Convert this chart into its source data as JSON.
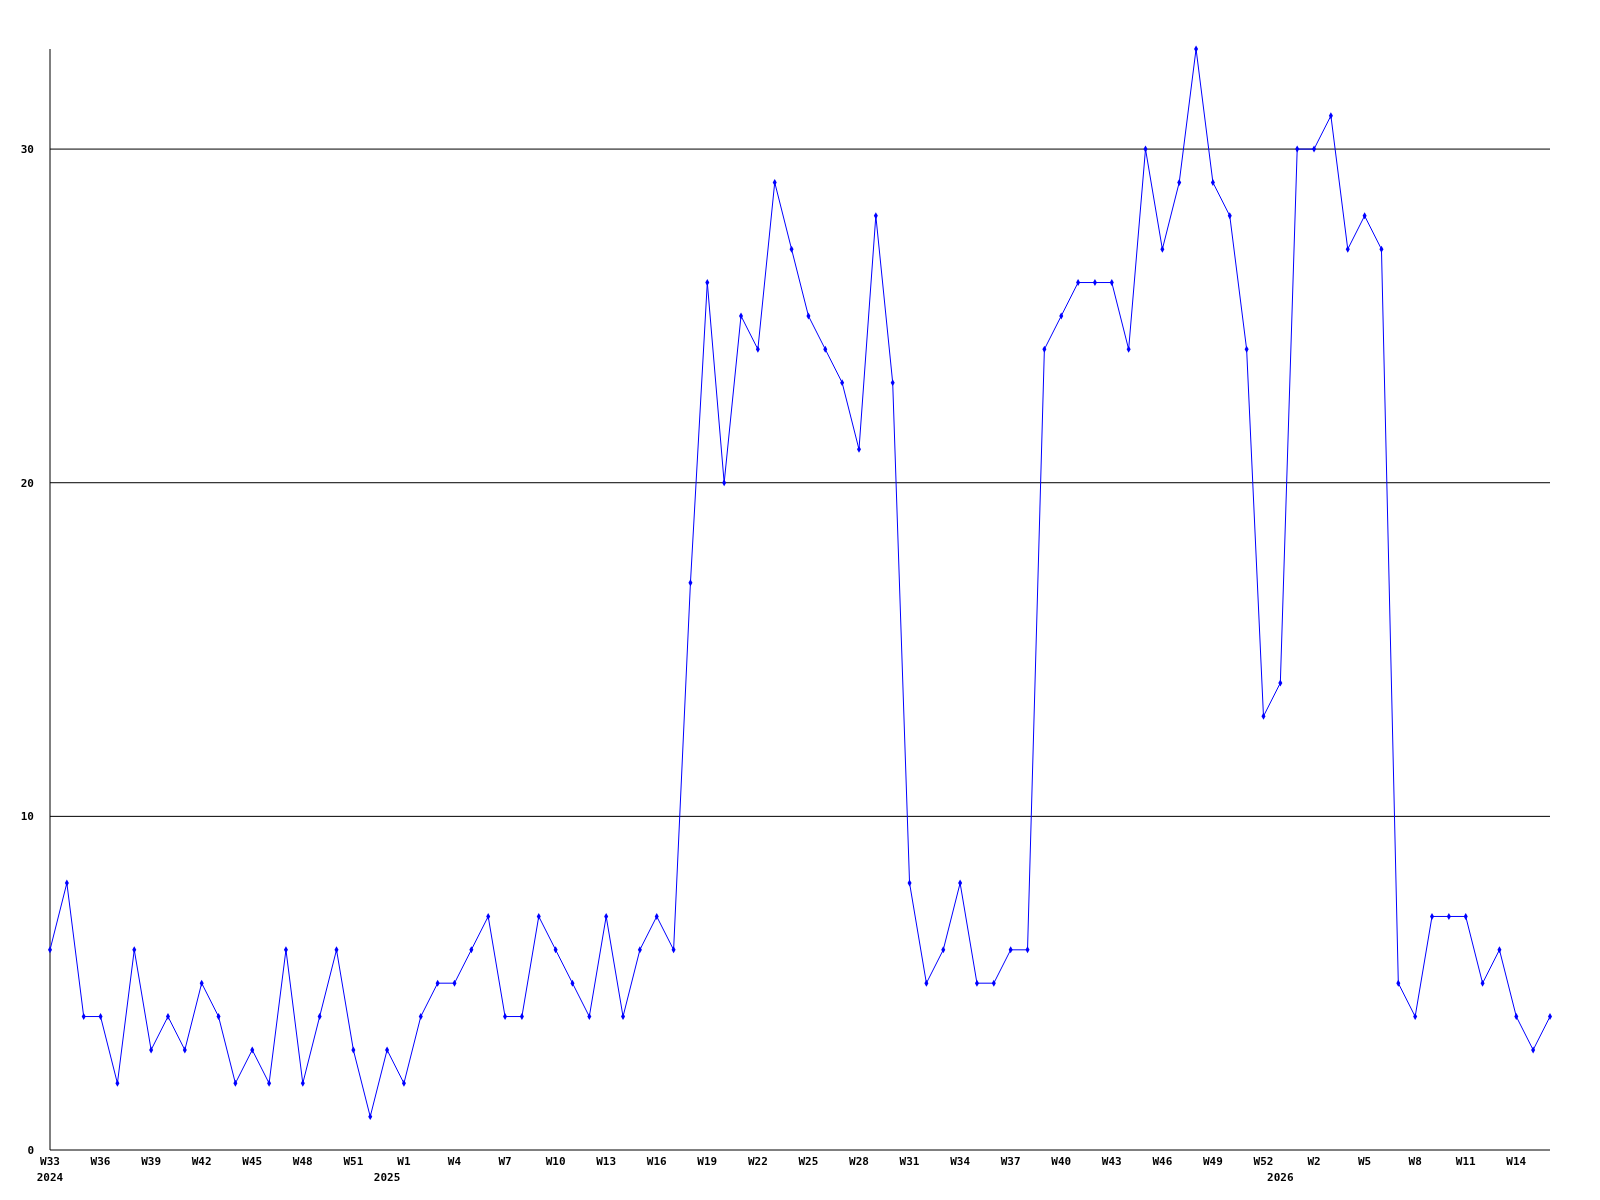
{
  "chart_data": {
    "type": "line",
    "categories": [
      "W33\n2024",
      null,
      null,
      "W36",
      null,
      null,
      "W39",
      null,
      null,
      "W42",
      null,
      null,
      "W45",
      null,
      null,
      "W48",
      null,
      null,
      "W51",
      null,
      "\n2025",
      "W1",
      null,
      null,
      "W4",
      null,
      null,
      "W7",
      null,
      null,
      "W10",
      null,
      null,
      "W13",
      null,
      null,
      "W16",
      null,
      null,
      "W19",
      null,
      null,
      "W22",
      null,
      null,
      "W25",
      null,
      null,
      "W28",
      null,
      null,
      "W31",
      null,
      null,
      "W34",
      null,
      null,
      "W37",
      null,
      null,
      "W40",
      null,
      null,
      "W43",
      null,
      null,
      "W46",
      null,
      null,
      "W49",
      null,
      null,
      "W52",
      "\n2026",
      null,
      "W2",
      null,
      null,
      "W5",
      null,
      null,
      "W8",
      null,
      null,
      "W11",
      null,
      null,
      "W14",
      null,
      null
    ],
    "series": [
      {
        "color": "#0000ff",
        "values": [
          6,
          8,
          4,
          4,
          2,
          6,
          3,
          4,
          3,
          5,
          4,
          2,
          3,
          2,
          6,
          2,
          4,
          6,
          3,
          1,
          3,
          2,
          4,
          5,
          5,
          6,
          7,
          4,
          4,
          7,
          6,
          5,
          4,
          7,
          4,
          6,
          7,
          6,
          17,
          26,
          20,
          25,
          24,
          29,
          27,
          25,
          24,
          23,
          21,
          28,
          23,
          8,
          5,
          6,
          8,
          5,
          5,
          6,
          6,
          24,
          25,
          26,
          26,
          26,
          24,
          30,
          27,
          29,
          33,
          29,
          28,
          24,
          13,
          14,
          30,
          30,
          31,
          27,
          28,
          27,
          5,
          4,
          7,
          7,
          7,
          5,
          6,
          4,
          3,
          4
        ]
      }
    ],
    "ylim": [
      0,
      33
    ],
    "yticks": [
      0,
      10,
      20,
      30
    ],
    "grid": "y",
    "marker": "diamond",
    "line_style": "solid"
  }
}
